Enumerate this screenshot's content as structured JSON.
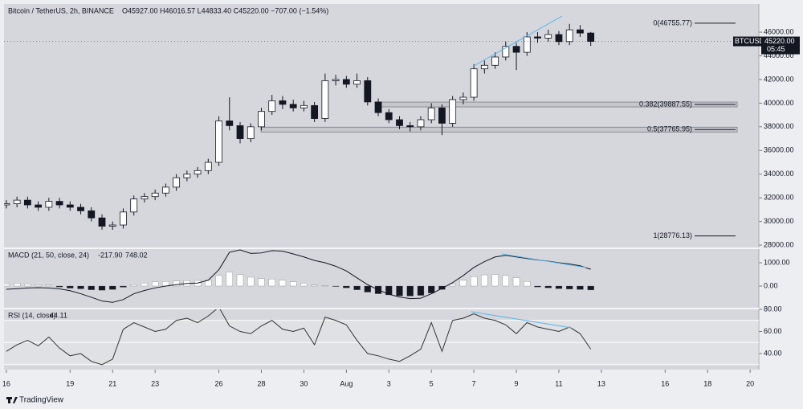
{
  "chart_data": [
    {
      "type": "candlestick",
      "title": "Bitcoin / TetherUS, 2h, BINANCE",
      "ohlc_header": "O45927.00 H46016.57 L44833.40 C45220.00 −707.00 (−1.54%)",
      "x": [
        16,
        16.5,
        17,
        17.5,
        18,
        18.5,
        19,
        19.5,
        20,
        20.5,
        21,
        21.5,
        22,
        22.5,
        23,
        23.5,
        24,
        24.5,
        25,
        25.5,
        26,
        26.5,
        27,
        27.5,
        28,
        28.5,
        29,
        29.5,
        30,
        30.5,
        31,
        31.5,
        32,
        32.5,
        33,
        33.5,
        34,
        34.5,
        35,
        35.5,
        36,
        36.5,
        37,
        37.5,
        38,
        38.5,
        39,
        39.5,
        40,
        40.5,
        41,
        41.5,
        42,
        42.5,
        43,
        43.5
      ],
      "open": [
        31400,
        31500,
        31800,
        31400,
        31200,
        31700,
        31400,
        31200,
        30900,
        30300,
        29600,
        29700,
        30800,
        31900,
        32100,
        32400,
        32900,
        33700,
        34000,
        34300,
        35000,
        38500,
        38100,
        37000,
        38000,
        39300,
        40200,
        39900,
        39600,
        39800,
        38700,
        41900,
        42000,
        41600,
        41900,
        40100,
        39200,
        38600,
        38100,
        38000,
        38600,
        39600,
        38300,
        40300,
        40500,
        42900,
        43200,
        43900,
        44800,
        44300,
        45600,
        45500,
        45800,
        45200,
        46200,
        45927
      ],
      "high": [
        31800,
        32100,
        32100,
        31700,
        32000,
        32000,
        31700,
        31500,
        31200,
        30600,
        30000,
        31100,
        32200,
        32400,
        32700,
        33200,
        34000,
        34300,
        34600,
        35300,
        38900,
        40500,
        38400,
        38300,
        39600,
        40700,
        40600,
        40300,
        40200,
        40100,
        42500,
        42400,
        42300,
        42500,
        42200,
        40400,
        39500,
        38900,
        38400,
        38900,
        40000,
        39900,
        40600,
        40900,
        43300,
        43600,
        44300,
        45200,
        45100,
        46000,
        46000,
        46200,
        46100,
        46700,
        46600,
        46016.57
      ],
      "low": [
        31100,
        31200,
        31100,
        30900,
        30900,
        31100,
        30900,
        30600,
        30000,
        29300,
        29300,
        29400,
        30500,
        31600,
        31800,
        32100,
        32600,
        33400,
        33700,
        34000,
        34700,
        37700,
        36600,
        36700,
        37700,
        39000,
        39500,
        39300,
        39300,
        38400,
        38400,
        41500,
        41300,
        41300,
        39800,
        38900,
        38300,
        37800,
        37600,
        37700,
        38300,
        37300,
        38000,
        39900,
        40200,
        42500,
        42900,
        43600,
        42800,
        44000,
        45100,
        45200,
        44900,
        44900,
        45600,
        44833.4
      ],
      "close": [
        31500,
        31800,
        31400,
        31200,
        31700,
        31400,
        31200,
        30900,
        30300,
        29600,
        29700,
        30800,
        31900,
        32100,
        32400,
        32900,
        33700,
        34000,
        34300,
        35000,
        38500,
        38100,
        37000,
        38000,
        39300,
        40200,
        39900,
        39600,
        39800,
        38700,
        41900,
        42000,
        41600,
        41900,
        40100,
        39200,
        38600,
        38100,
        38000,
        38600,
        39600,
        38300,
        40300,
        40500,
        42900,
        43200,
        43900,
        44800,
        44300,
        45600,
        45500,
        45800,
        45200,
        46200,
        45927,
        45220
      ],
      "up_color": "#ffffff",
      "down_color": "#131722",
      "xlim": [
        15.89,
        51.41
      ],
      "xticks": [
        16,
        19,
        21,
        23,
        26,
        28,
        30,
        {
          "value": 32,
          "label": "Aug"
        },
        {
          "value": 34,
          "label": "3"
        },
        {
          "value": 36,
          "label": "5"
        },
        {
          "value": 38,
          "label": "7"
        },
        {
          "value": 40,
          "label": "9"
        },
        {
          "value": 42,
          "label": "11"
        },
        {
          "value": 44,
          "label": "13"
        },
        {
          "value": 47,
          "label": "16"
        },
        {
          "value": 49,
          "label": "18"
        },
        {
          "value": 51,
          "label": "20"
        }
      ],
      "ylim": [
        27800,
        48380
      ],
      "yticks": [
        {
          "value": 28000,
          "label": "28000.00"
        },
        {
          "value": 30000,
          "label": "30000.00"
        },
        {
          "value": 32000,
          "label": "32000.00"
        },
        {
          "value": 34000,
          "label": "34000.00"
        },
        {
          "value": 36000,
          "label": "36000.00"
        },
        {
          "value": 38000,
          "label": "38000.00"
        },
        {
          "value": 40000,
          "label": "40000.00"
        },
        {
          "value": 42000,
          "label": "42000.00"
        },
        {
          "value": 44000,
          "label": "44000.00"
        },
        {
          "value": 46000,
          "label": "46000.00"
        }
      ],
      "fib_levels": [
        {
          "value": 46755.77,
          "label": "0(46755.77)"
        },
        {
          "value": 39887.55,
          "label": "0.382(39887.55)"
        },
        {
          "value": 37765.95,
          "label": "0.5(37765.95)"
        },
        {
          "value": 28776.13,
          "label": "1(28776.13)"
        }
      ],
      "price_tag": {
        "symbol": "BTCUSDT",
        "price": {
          "value": 45220,
          "label": "45220.00"
        },
        "countdown": "05:45"
      }
    },
    {
      "type": "macd",
      "title": "MACD (21, 50, close, 24)",
      "readout": [
        "-217.90",
        "748.02"
      ],
      "values": [
        -140,
        -110,
        -80,
        -70,
        -80,
        -120,
        -200,
        -330,
        -480,
        -640,
        -700,
        -580,
        -330,
        -190,
        -80,
        0,
        60,
        110,
        130,
        250,
        700,
        1450,
        1550,
        1400,
        1420,
        1520,
        1500,
        1380,
        1250,
        1100,
        1000,
        850,
        650,
        350,
        60,
        -160,
        -350,
        -470,
        -540,
        -520,
        -330,
        -100,
        150,
        450,
        800,
        1050,
        1250,
        1320,
        1250,
        1180,
        1120,
        1070,
        1000,
        950,
        870,
        720
      ],
      "histogram": [
        100,
        120,
        90,
        60,
        40,
        -40,
        -90,
        -120,
        -160,
        -180,
        -150,
        -50,
        60,
        130,
        180,
        200,
        220,
        230,
        240,
        260,
        450,
        600,
        500,
        380,
        320,
        300,
        250,
        180,
        120,
        40,
        30,
        -20,
        -80,
        -160,
        -260,
        -330,
        -380,
        -420,
        -430,
        -400,
        -300,
        -150,
        80,
        250,
        400,
        480,
        500,
        450,
        350,
        200,
        -40,
        -80,
        -110,
        -130,
        -150,
        -170
      ],
      "color": "#131722",
      "up_color": "#ffffff",
      "down_color": "#131722",
      "ylim": [
        -931,
        1586
      ],
      "yticks": [
        {
          "value": 0,
          "label": "0.00"
        },
        {
          "value": 1000,
          "label": "1000.00"
        }
      ]
    },
    {
      "type": "rsi",
      "title": "RSI (14, close)",
      "readout": "44.11",
      "values": [
        42,
        48,
        52,
        47,
        55,
        45,
        38,
        40,
        33,
        30,
        35,
        62,
        68,
        64,
        60,
        62,
        70,
        72,
        68,
        74,
        82,
        65,
        60,
        58,
        65,
        70,
        62,
        60,
        63,
        48,
        73,
        70,
        66,
        52,
        40,
        38,
        35,
        33,
        38,
        44,
        68,
        42,
        70,
        72,
        76,
        72,
        70,
        66,
        58,
        68,
        64,
        62,
        60,
        64,
        58,
        44.11
      ],
      "color": "#333333",
      "levels": [
        30,
        50,
        70
      ],
      "ylim": [
        25.5,
        80
      ],
      "yticks": [
        {
          "value": 40,
          "label": "40.00"
        },
        {
          "value": 60,
          "label": "60.00"
        },
        {
          "value": 80,
          "label": "80.00"
        }
      ]
    }
  ],
  "footer": "TradingView"
}
